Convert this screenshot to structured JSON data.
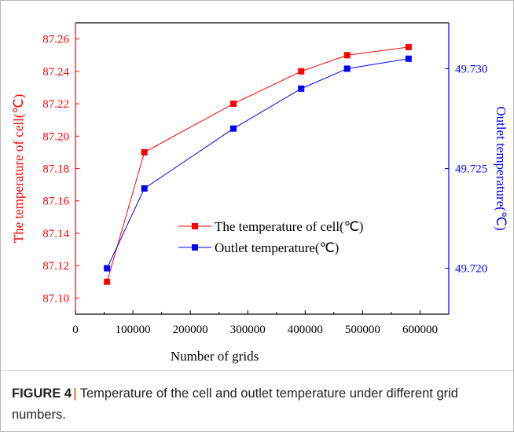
{
  "figure": {
    "label": "FIGURE 4",
    "separator": "|",
    "caption": "Temperature of the cell and outlet temperature under different grid numbers."
  },
  "colors": {
    "left_series": "#ff0000",
    "right_series": "#0000ff",
    "axis": "#000000"
  },
  "chart_data": {
    "type": "line",
    "title": "",
    "xlabel": "Number of grids",
    "ylabel_left": "The temperature of cell(℃)",
    "ylabel_right": "Outlet temperature(℃)",
    "xlim": [
      0,
      650000
    ],
    "xticks": [
      0,
      100000,
      200000,
      300000,
      400000,
      500000,
      600000
    ],
    "xtick_labels": [
      "0",
      "100000",
      "200000",
      "300000",
      "400000",
      "500000",
      "600000"
    ],
    "ylim_left": [
      87.09,
      87.27
    ],
    "yticks_left": [
      87.1,
      87.12,
      87.14,
      87.16,
      87.18,
      87.2,
      87.22,
      87.24,
      87.26
    ],
    "ytick_labels_left": [
      "87.10",
      "87.12",
      "87.14",
      "87.16",
      "87.18",
      "87.20",
      "87.22",
      "87.24",
      "87.26"
    ],
    "ylim_right": [
      49.7177,
      49.7323
    ],
    "yticks_right": [
      49.72,
      49.725,
      49.73
    ],
    "ytick_labels_right": [
      "49.720",
      "49.725",
      "49.730"
    ],
    "grid": false,
    "legend_position": "lower-center",
    "series": [
      {
        "name": "The temperature of cell(℃)",
        "axis": "left",
        "color": "#ff0000",
        "marker": "square",
        "x": [
          55000,
          120000,
          275000,
          393000,
          473000,
          580000
        ],
        "y": [
          87.11,
          87.19,
          87.22,
          87.24,
          87.25,
          87.255
        ]
      },
      {
        "name": "Outlet temperature(℃)",
        "axis": "right",
        "color": "#0000ff",
        "marker": "square",
        "x": [
          55000,
          120000,
          275000,
          393000,
          473000,
          580000
        ],
        "y": [
          49.72,
          49.724,
          49.727,
          49.729,
          49.73,
          49.7305
        ]
      }
    ]
  }
}
